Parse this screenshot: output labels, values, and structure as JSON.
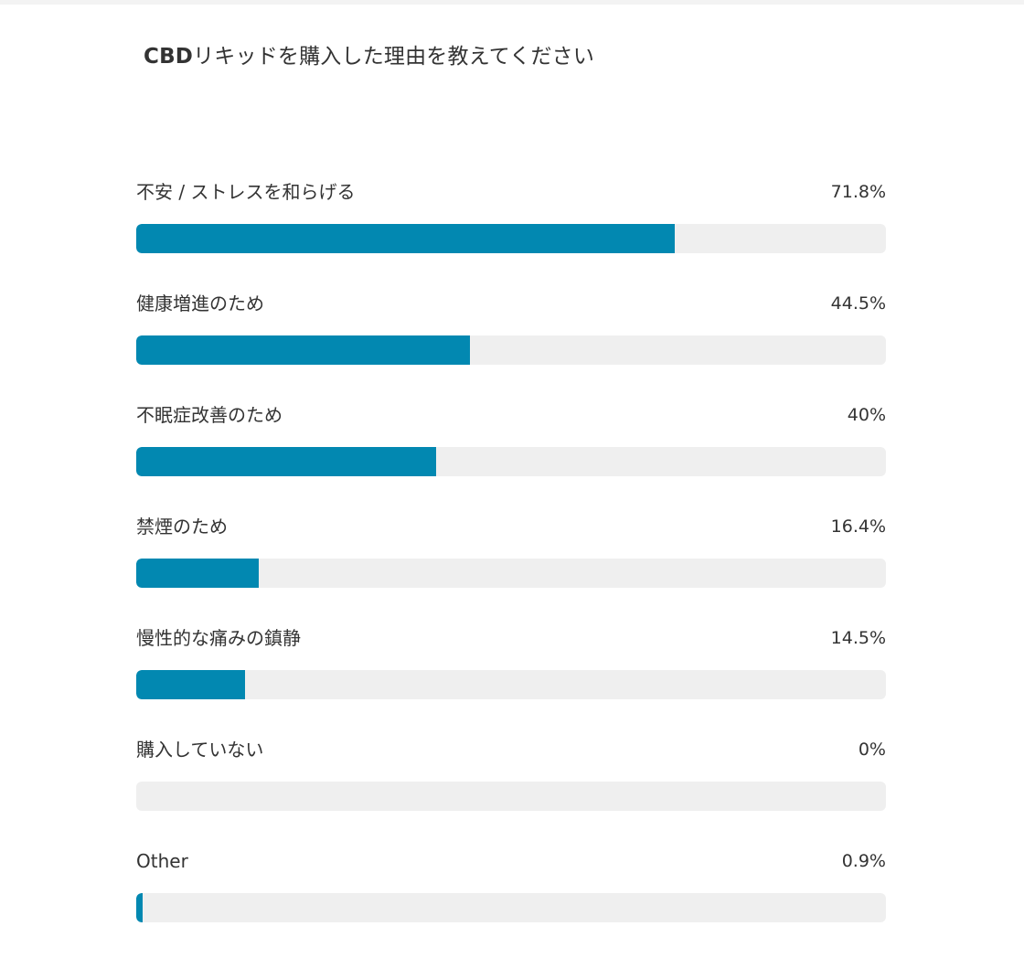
{
  "title": {
    "brand": "CBD",
    "text": "リキッドを購入した理由を教えてください"
  },
  "colors": {
    "bar_fill": "#0288b1",
    "track": "#efefef",
    "text": "#333333"
  },
  "chart_data": {
    "type": "bar",
    "orientation": "horizontal",
    "title": "CBDリキッドを購入した理由を教えてください",
    "xlim": [
      0,
      100
    ],
    "grid": false,
    "categories": [
      "不安 / ストレスを和らげる",
      "健康増進のため",
      "不眠症改善のため",
      "禁煙のため",
      "慢性的な痛みの鎮静",
      "購入していない",
      "Other"
    ],
    "values": [
      71.8,
      44.5,
      40,
      16.4,
      14.5,
      0,
      0.9
    ],
    "value_labels": [
      "71.8%",
      "44.5%",
      "40%",
      "16.4%",
      "14.5%",
      "0%",
      "0.9%"
    ]
  }
}
